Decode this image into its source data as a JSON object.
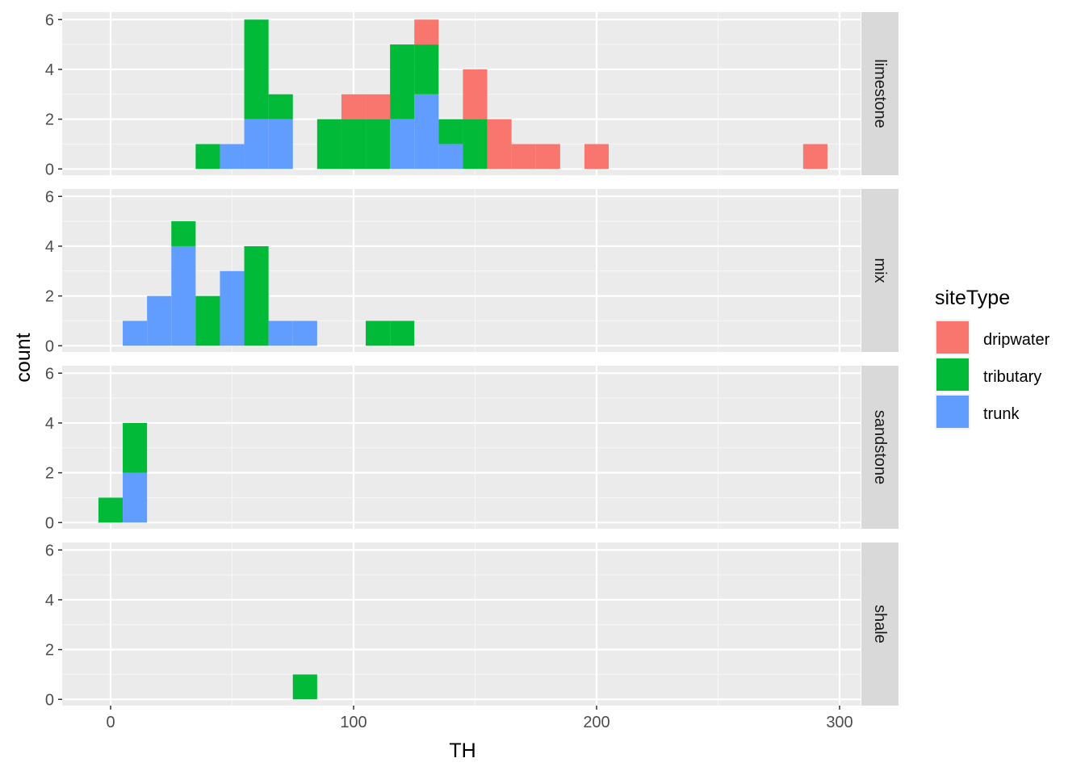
{
  "chart_data": {
    "type": "bar",
    "subtype": "stacked-histogram-faceted",
    "xlabel": "TH",
    "ylabel": "count",
    "x_ticks": [
      0,
      100,
      200,
      300
    ],
    "y_ticks": [
      0,
      2,
      4,
      6
    ],
    "xlim": [
      -20,
      310
    ],
    "ylim": [
      -0.25,
      6.3
    ],
    "binwidth": 10,
    "grid": true,
    "legend": {
      "title": "siteType",
      "position": "right",
      "entries": [
        "dripwater",
        "tributary",
        "trunk"
      ]
    },
    "colors": {
      "dripwater": "#F8766D",
      "tributary": "#00BA38",
      "trunk": "#619CFF"
    },
    "stack_order": [
      "trunk",
      "tributary",
      "dripwater"
    ],
    "panels": [
      {
        "strip": "limestone",
        "bins": [
          {
            "x": 40,
            "tributary": 1
          },
          {
            "x": 50,
            "trunk": 1
          },
          {
            "x": 60,
            "trunk": 2,
            "tributary": 4
          },
          {
            "x": 70,
            "trunk": 2,
            "tributary": 1
          },
          {
            "x": 90,
            "tributary": 2
          },
          {
            "x": 100,
            "tributary": 2,
            "dripwater": 1
          },
          {
            "x": 110,
            "tributary": 2,
            "dripwater": 1
          },
          {
            "x": 120,
            "trunk": 2,
            "tributary": 3
          },
          {
            "x": 130,
            "trunk": 3,
            "tributary": 2,
            "dripwater": 1
          },
          {
            "x": 140,
            "trunk": 1,
            "tributary": 1
          },
          {
            "x": 150,
            "tributary": 2,
            "dripwater": 2
          },
          {
            "x": 160,
            "dripwater": 2
          },
          {
            "x": 170,
            "dripwater": 1
          },
          {
            "x": 180,
            "dripwater": 1
          },
          {
            "x": 200,
            "dripwater": 1
          },
          {
            "x": 290,
            "dripwater": 1
          }
        ]
      },
      {
        "strip": "mix",
        "bins": [
          {
            "x": 10,
            "trunk": 1
          },
          {
            "x": 20,
            "trunk": 2
          },
          {
            "x": 30,
            "trunk": 4,
            "tributary": 1
          },
          {
            "x": 40,
            "tributary": 2
          },
          {
            "x": 50,
            "trunk": 3
          },
          {
            "x": 60,
            "tributary": 4
          },
          {
            "x": 70,
            "trunk": 1
          },
          {
            "x": 80,
            "trunk": 1
          },
          {
            "x": 110,
            "tributary": 1
          },
          {
            "x": 120,
            "tributary": 1
          }
        ]
      },
      {
        "strip": "sandstone",
        "bins": [
          {
            "x": 0,
            "tributary": 1
          },
          {
            "x": 10,
            "trunk": 2,
            "tributary": 2
          }
        ]
      },
      {
        "strip": "shale",
        "bins": [
          {
            "x": 80,
            "tributary": 1
          }
        ]
      }
    ]
  }
}
